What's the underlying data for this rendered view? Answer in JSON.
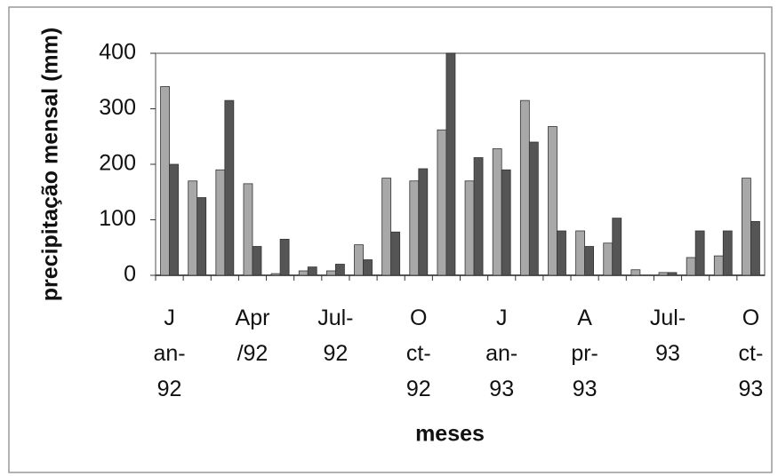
{
  "chart_data": {
    "type": "bar",
    "ylabel": "precipitação mensal (mm)",
    "xlabel": "meses",
    "categories": [
      "J\nan-\n92",
      null,
      null,
      "Apr\n/92",
      null,
      null,
      "Jul-\n92",
      null,
      null,
      "O\nct-\n92",
      null,
      null,
      "J\nan-\n93",
      null,
      null,
      "A\npr-\n93",
      null,
      null,
      "Jul-\n93",
      null,
      null,
      "O\nct-\n93"
    ],
    "series": [
      {
        "color": "#a8a8a8",
        "values": [
          340,
          170,
          190,
          165,
          3,
          8,
          8,
          55,
          175,
          170,
          262,
          170,
          228,
          315,
          268,
          80,
          58,
          10,
          5,
          32,
          35,
          175
        ]
      },
      {
        "color": "#555555",
        "values": [
          200,
          140,
          315,
          52,
          65,
          15,
          20,
          28,
          78,
          192,
          400,
          212,
          190,
          240,
          80,
          52,
          103,
          0,
          5,
          80,
          80,
          97
        ]
      }
    ],
    "ylim": [
      0,
      400
    ],
    "yticks": [
      0,
      100,
      200,
      300,
      400
    ],
    "grid": false
  }
}
